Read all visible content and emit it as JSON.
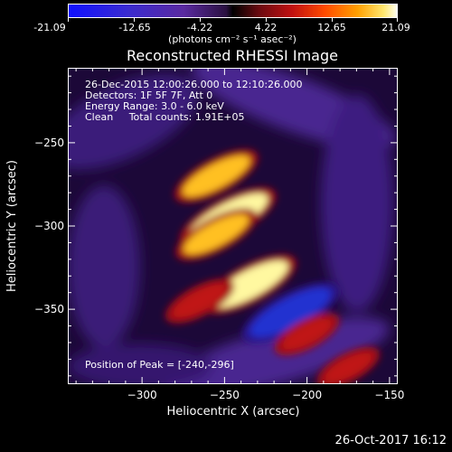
{
  "colorbar": {
    "ticks": [
      "-21.09",
      "-12.65",
      "-4.22",
      "4.22",
      "12.65",
      "21.09"
    ],
    "units": "(photons cm⁻² s⁻¹ asec⁻²)"
  },
  "title": "Reconstructed RHESSI Image",
  "info": {
    "line1": "26-Dec-2015 12:00:26.000 to 12:10:26.000",
    "line2": "Detectors: 1F 5F 7F, Att 0",
    "line3": "Energy Range: 3.0 - 6.0 keV",
    "line4": "Clean     Total counts: 1.91E+05",
    "peak": "Position of Peak = [-240,-296]"
  },
  "footer_date": "26-Oct-2017 16:12",
  "chart_data": {
    "type": "heatmap",
    "title": "Reconstructed RHESSI Image",
    "xlabel": "Heliocentric X (arcsec)",
    "ylabel": "Heliocentric Y (arcsec)",
    "xlim": [
      -345,
      -145
    ],
    "ylim": [
      -395,
      -205
    ],
    "x_ticks": [
      -300,
      -250,
      -200,
      -150
    ],
    "y_ticks": [
      -250,
      -300,
      -350
    ],
    "colorbar_range": [
      -21.09,
      21.09
    ],
    "peak_position": [
      -240,
      -296
    ],
    "features": [
      {
        "x": -255,
        "y": -270,
        "value": 15
      },
      {
        "x": -248,
        "y": -295,
        "value": 21.09
      },
      {
        "x": -255,
        "y": -305,
        "value": 14
      },
      {
        "x": -235,
        "y": -335,
        "value": 20
      },
      {
        "x": -265,
        "y": -345,
        "value": 8
      },
      {
        "x": -210,
        "y": -352,
        "value": -21.09
      },
      {
        "x": -200,
        "y": -365,
        "value": 6
      },
      {
        "x": -175,
        "y": -385,
        "value": 5
      }
    ]
  }
}
